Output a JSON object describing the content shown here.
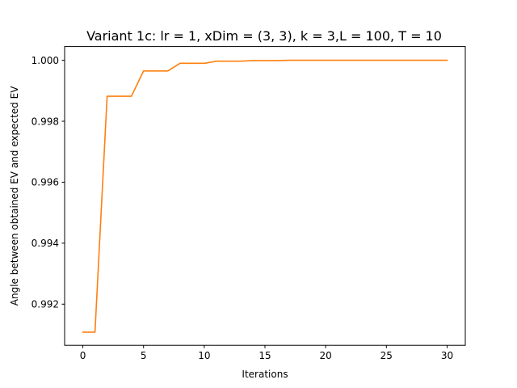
{
  "chart_data": {
    "type": "line",
    "title": "Variant 1c: lr = 1, xDim = (3, 3), k = 3,L = 100, T = 10",
    "xlabel": "Iterations",
    "ylabel": "Angle between obtained EV and expected EV",
    "xlim": [
      -1.5,
      31.5
    ],
    "ylim": [
      0.99065,
      1.00045
    ],
    "xticks": [
      0,
      5,
      10,
      15,
      20,
      25,
      30
    ],
    "yticks": [
      0.992,
      0.994,
      0.996,
      0.998,
      1.0
    ],
    "ytick_labels": [
      "0.992",
      "0.994",
      "0.996",
      "0.998",
      "1.000"
    ],
    "grid": false,
    "series": [
      {
        "color": "#ff7f0e",
        "x": [
          0,
          1,
          2,
          3,
          4,
          5,
          6,
          7,
          8,
          9,
          10,
          11,
          12,
          13,
          14,
          15,
          16,
          17,
          18,
          19,
          20,
          21,
          22,
          23,
          24,
          25,
          26,
          27,
          28,
          29,
          30
        ],
        "y": [
          0.99108,
          0.99108,
          0.99882,
          0.99882,
          0.99882,
          0.99965,
          0.99965,
          0.99965,
          0.9999,
          0.9999,
          0.9999,
          0.99997,
          0.99997,
          0.99997,
          0.99999,
          0.99999,
          0.99999,
          1.0,
          1.0,
          1.0,
          1.0,
          1.0,
          1.0,
          1.0,
          1.0,
          1.0,
          1.0,
          1.0,
          1.0,
          1.0,
          1.0
        ]
      }
    ]
  }
}
